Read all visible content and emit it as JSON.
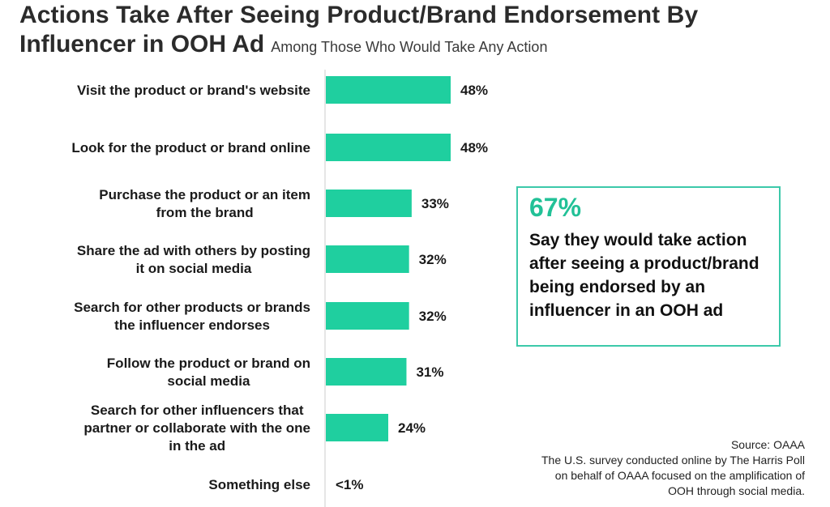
{
  "title": {
    "line1": "Actions Take After Seeing Product/Brand Endorsement By",
    "line2": "Influencer in OOH Ad",
    "subtitle": "Among Those Who Would Take Any Action"
  },
  "colors": {
    "bar": "#1fcf9f",
    "callout_border": "#3cc9aa",
    "callout_stat": "#22c197",
    "axis": "#dddddd"
  },
  "chart_data": {
    "type": "bar",
    "orientation": "horizontal",
    "categories": [
      [
        "Visit the product or brand's website"
      ],
      [
        "Look for the product or brand online"
      ],
      [
        "Purchase the product or an item",
        "from the brand"
      ],
      [
        "Share the ad with others by posting",
        "it on social media"
      ],
      [
        "Search for other products or brands",
        "the influencer endorses"
      ],
      [
        "Follow the product or brand on",
        "social media"
      ],
      [
        "Search for other influencers that",
        "partner or collaborate with the one",
        "in the ad"
      ],
      [
        "Something else"
      ]
    ],
    "values": [
      48,
      48,
      33,
      32,
      32,
      31,
      24,
      0.5
    ],
    "value_labels": [
      "48%",
      "48%",
      "33%",
      "32%",
      "32%",
      "31%",
      "24%",
      "<1%"
    ],
    "xlim": [
      0,
      100
    ],
    "grid": false,
    "legend": "none"
  },
  "callout": {
    "stat": "67%",
    "text": "Say they would take action after seeing a product/brand being endorsed by an influencer in an OOH ad"
  },
  "source": {
    "line1": "Source: OAAA",
    "line2": "The U.S. survey conducted online by The Harris Poll",
    "line3": "on behalf of OAAA focused on the amplification of",
    "line4": "OOH through social media."
  }
}
